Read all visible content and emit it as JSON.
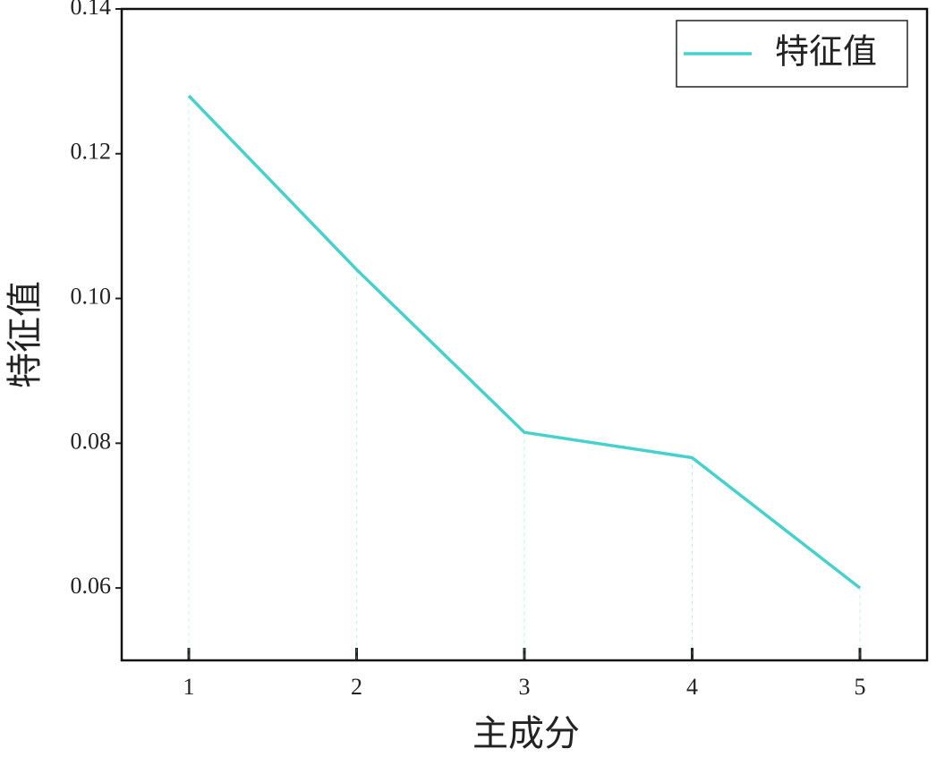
{
  "chart_data": {
    "type": "line",
    "x_label": "主成分",
    "y_label": "特征值",
    "x": [
      1,
      2,
      3,
      4,
      5
    ],
    "series": [
      {
        "name": "特征值",
        "color": "#48d1cc",
        "values": [
          0.128,
          0.104,
          0.0815,
          0.078,
          0.06
        ]
      }
    ],
    "xlim": [
      0.6,
      5.4
    ],
    "xticks": [
      1,
      2,
      3,
      4,
      5
    ],
    "ylim": [
      0.05,
      0.14
    ],
    "yticks": [
      {
        "value": 0.06,
        "label": "0.06"
      },
      {
        "value": 0.08,
        "label": "0.08"
      },
      {
        "value": 0.1,
        "label": "0.10"
      },
      {
        "value": 0.12,
        "label": "0.12"
      },
      {
        "value": 0.14,
        "label": "0.14"
      }
    ],
    "drop_lines": true,
    "legend": "upper right"
  }
}
